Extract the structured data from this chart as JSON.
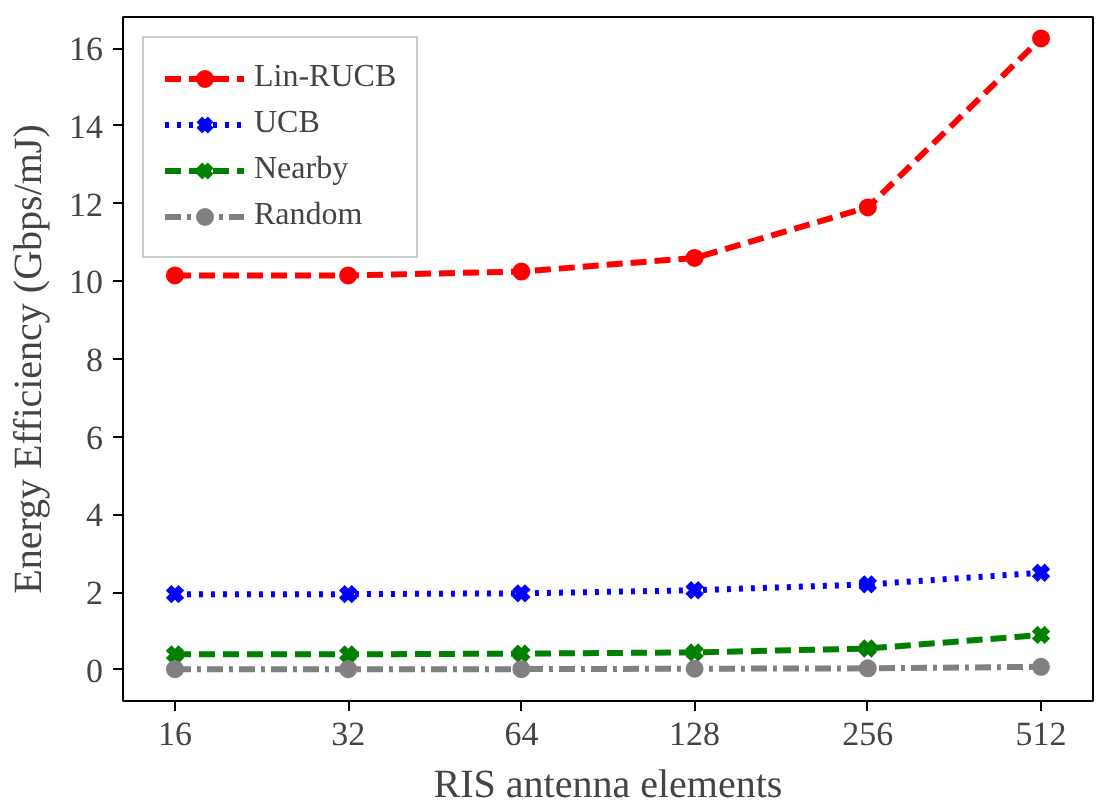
{
  "chart_data": {
    "type": "line",
    "xlabel": "RIS antenna elements",
    "ylabel": "Energy Efficiency (Gbps/mJ)",
    "categories": [
      "16",
      "32",
      "64",
      "128",
      "256",
      "512"
    ],
    "ylim": [
      -0.8,
      16.8
    ],
    "yticks": [
      0,
      2,
      4,
      6,
      8,
      10,
      12,
      14,
      16
    ],
    "grid": false,
    "legend": "top left",
    "series": [
      {
        "name": "Lin-RUCB",
        "color": "#ff0000",
        "marker": "circle",
        "line_style": "dashed",
        "values": [
          10.15,
          10.15,
          10.25,
          10.6,
          11.9,
          16.25
        ]
      },
      {
        "name": "UCB",
        "color": "#0000ff",
        "marker": "cross",
        "line_style": "dotted",
        "values": [
          1.95,
          1.95,
          1.97,
          2.05,
          2.2,
          2.5
        ]
      },
      {
        "name": "Nearby",
        "color": "#008000",
        "marker": "cross",
        "line_style": "dashed",
        "values": [
          0.4,
          0.4,
          0.42,
          0.45,
          0.55,
          0.9
        ]
      },
      {
        "name": "Random",
        "color": "#808080",
        "marker": "circle",
        "line_style": "dashdot",
        "values": [
          0.02,
          0.02,
          0.02,
          0.03,
          0.04,
          0.08
        ]
      }
    ]
  }
}
